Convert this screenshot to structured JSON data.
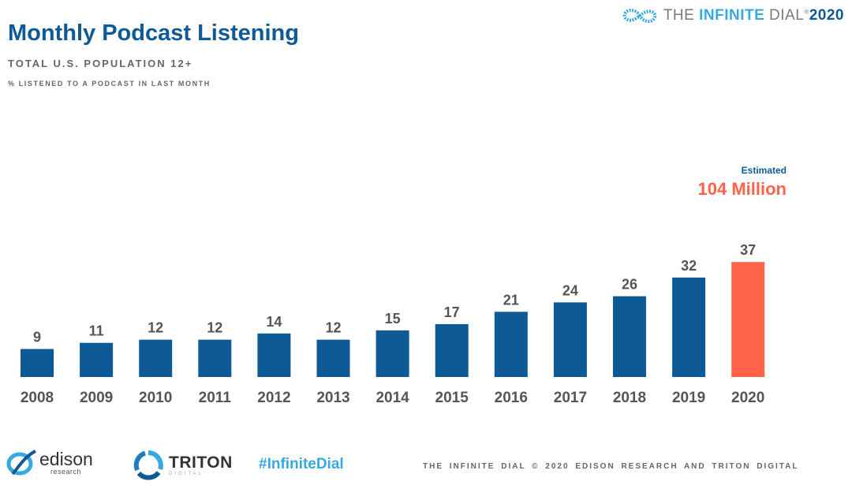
{
  "brand": {
    "prefix": "THE ",
    "strong": "INFINITE",
    "suffix": " DIAL",
    "reg": "®",
    "year": "2020"
  },
  "header": {
    "title": "Monthly Podcast Listening",
    "subtitle": "TOTAL U.S. POPULATION 12+",
    "note": "% LISTENED TO A PODCAST IN LAST MONTH"
  },
  "callout": {
    "label": "Estimated",
    "value": "104 Million"
  },
  "colors": {
    "bar": "#0e5a96",
    "highlight": "#ff6349",
    "title": "#0e5a96",
    "text": "#555555",
    "accent": "#36a9e1"
  },
  "chart_data": {
    "type": "bar",
    "title": "Monthly Podcast Listening",
    "subtitle": "TOTAL U.S. POPULATION 12+",
    "ylabel": "% LISTENED TO A PODCAST IN LAST MONTH",
    "xlabel": "",
    "categories": [
      "2008",
      "2009",
      "2010",
      "2011",
      "2012",
      "2013",
      "2014",
      "2015",
      "2016",
      "2017",
      "2018",
      "2019",
      "2020"
    ],
    "values": [
      9,
      11,
      12,
      12,
      14,
      12,
      15,
      17,
      21,
      24,
      26,
      32,
      37
    ],
    "highlight_index": 12,
    "ylim": [
      0,
      37
    ],
    "grid": false,
    "legend": "none",
    "data_labels": true
  },
  "footer": {
    "edison": {
      "word": "edison",
      "sub": "research",
      "icon": "edison-logo"
    },
    "triton": {
      "word": "TRITON",
      "sub": "DIGITAL",
      "icon": "triton-logo"
    },
    "hashtag": "#InfiniteDial",
    "text": "THE INFINITE DIAL © 2020 EDISON RESEARCH AND TRITON DIGITAL"
  }
}
